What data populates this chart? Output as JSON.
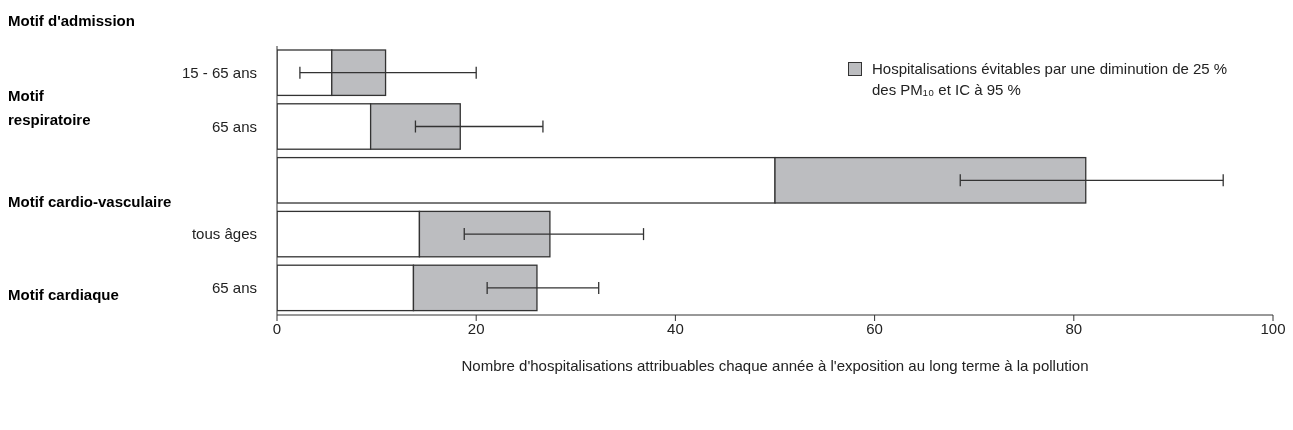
{
  "chart_data": {
    "type": "bar",
    "orientation": "horizontal",
    "stacked": true,
    "ylabel": "Motif d'admission",
    "xlabel": "Nombre d'hospitalisations attribuables chaque année à l'exposition au long terme à la pollution",
    "categories": [
      "15 - 65 ans",
      "65 ans",
      null,
      "tous âges",
      "65 ans"
    ],
    "series": [
      {
        "color": "#ffffff",
        "values": [
          5.5,
          9.4,
          50.0,
          14.3,
          13.7
        ]
      },
      {
        "name": "Hospitalisations évitables par une diminution de 25 % des PM₁₀ et IC à 95 %",
        "color": "#bcbdc0",
        "values": [
          5.4,
          9.0,
          31.2,
          13.1,
          12.4
        ],
        "errors": [
          [
            2.3,
            20.0
          ],
          [
            13.9,
            26.7
          ],
          [
            68.6,
            95.0
          ],
          [
            18.8,
            36.8
          ],
          [
            21.1,
            32.3
          ]
        ]
      }
    ],
    "annotations": [
      "Motif respiratoire",
      "Motif cardio-vasculaire",
      "Motif cardiaque"
    ],
    "xlim": [
      0,
      100
    ],
    "xticks": [
      0,
      20,
      40,
      60,
      80,
      100
    ],
    "legend": "top right"
  }
}
